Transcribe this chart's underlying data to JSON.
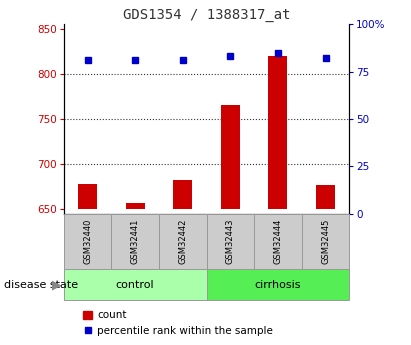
{
  "title": "GDS1354 / 1388317_at",
  "samples": [
    "GSM32440",
    "GSM32441",
    "GSM32442",
    "GSM32443",
    "GSM32444",
    "GSM32445"
  ],
  "count_values": [
    678,
    657,
    683,
    765,
    820,
    677
  ],
  "percentile_values": [
    81,
    81,
    81,
    83,
    85,
    82
  ],
  "ylim_left": [
    645,
    855
  ],
  "ylim_right": [
    0,
    100
  ],
  "yticks_left": [
    650,
    700,
    750,
    800,
    850
  ],
  "yticks_right": [
    0,
    25,
    50,
    75,
    100
  ],
  "bar_color": "#cc0000",
  "dot_color": "#0000cc",
  "bar_bottom": 650,
  "groups": [
    {
      "label": "control",
      "samples": [
        0,
        1,
        2
      ],
      "color": "#aaffaa"
    },
    {
      "label": "cirrhosis",
      "samples": [
        3,
        4,
        5
      ],
      "color": "#55ee55"
    }
  ],
  "group_label": "disease state",
  "legend_count_label": "count",
  "legend_percentile_label": "percentile rank within the sample",
  "title_color": "#333333",
  "left_tick_color": "#cc0000",
  "right_tick_color": "#0000cc",
  "grid_color": "#333333",
  "background_color": "#ffffff",
  "plot_background": "#ffffff",
  "grid_yticks": [
    700,
    750,
    800
  ],
  "box_facecolor": "#cccccc",
  "box_edgecolor": "#999999"
}
